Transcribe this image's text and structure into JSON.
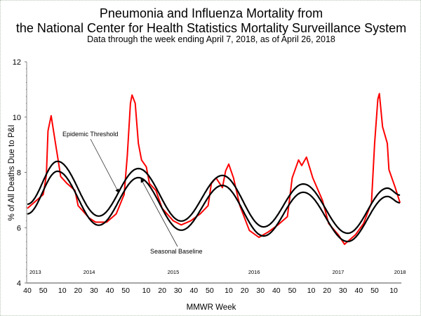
{
  "chart_data": {
    "type": "line",
    "title": "Pneumonia and Influenza Mortality from",
    "title_line2": "the National Center for Health Statistics Mortality Surveillance System",
    "subtitle": "Data through the week ending April 7, 2018, as of April 26, 2018",
    "xlabel": "MMWR Week",
    "ylabel": "% of All Deaths Due to P&I",
    "ylim": [
      4,
      12
    ],
    "yticks": [
      "4",
      "6",
      "8",
      "10",
      "12"
    ],
    "xrange": [
      "2013-40",
      "2018-14"
    ],
    "xticks": [
      {
        "at": "2013-40",
        "label": "40"
      },
      {
        "at": "2013-50",
        "label": "50"
      },
      {
        "at": "2014-10",
        "label": "10"
      },
      {
        "at": "2014-20",
        "label": "20"
      },
      {
        "at": "2014-30",
        "label": "30"
      },
      {
        "at": "2014-40",
        "label": "40"
      },
      {
        "at": "2014-50",
        "label": "50"
      },
      {
        "at": "2015-10",
        "label": "10"
      },
      {
        "at": "2015-20",
        "label": "20"
      },
      {
        "at": "2015-30",
        "label": "30"
      },
      {
        "at": "2015-40",
        "label": "40"
      },
      {
        "at": "2015-50",
        "label": "50"
      },
      {
        "at": "2016-10",
        "label": "10"
      },
      {
        "at": "2016-20",
        "label": "20"
      },
      {
        "at": "2016-30",
        "label": "30"
      },
      {
        "at": "2016-40",
        "label": "40"
      },
      {
        "at": "2016-50",
        "label": "50"
      },
      {
        "at": "2017-10",
        "label": "10"
      },
      {
        "at": "2017-20",
        "label": "20"
      },
      {
        "at": "2017-30",
        "label": "30"
      },
      {
        "at": "2017-40",
        "label": "40"
      },
      {
        "at": "2017-50",
        "label": "50"
      },
      {
        "at": "2018-10",
        "label": "10"
      }
    ],
    "year_labels": [
      {
        "at": "2013-45",
        "label": "2013"
      },
      {
        "at": "2014-27",
        "label": "2014"
      },
      {
        "at": "2015-27",
        "label": "2015"
      },
      {
        "at": "2016-26",
        "label": "2016"
      },
      {
        "at": "2017-27",
        "label": "2017"
      },
      {
        "at": "2018-14",
        "label": "2018"
      }
    ],
    "grid": false,
    "series": [
      {
        "name": "% of deaths due to P&I",
        "color": "#ff0000",
        "points": [
          [
            "2013-40",
            6.7
          ],
          [
            "2013-46",
            7.0
          ],
          [
            "2013-50",
            7.2
          ],
          [
            "2013-52",
            7.9
          ],
          [
            "2014-01",
            9.5
          ],
          [
            "2014-03",
            10.05
          ],
          [
            "2014-06",
            8.95
          ],
          [
            "2014-07",
            8.6
          ],
          [
            "2014-09",
            7.85
          ],
          [
            "2014-13",
            7.6
          ],
          [
            "2014-18",
            7.35
          ],
          [
            "2014-20",
            6.8
          ],
          [
            "2014-27",
            6.35
          ],
          [
            "2014-31",
            6.2
          ],
          [
            "2014-38",
            6.2
          ],
          [
            "2014-44",
            6.5
          ],
          [
            "2014-49",
            7.2
          ],
          [
            "2014-51",
            8.6
          ],
          [
            "2014-53",
            10.5
          ],
          [
            "2015-01",
            10.8
          ],
          [
            "2015-03",
            10.5
          ],
          [
            "2015-05",
            9.05
          ],
          [
            "2015-07",
            8.45
          ],
          [
            "2015-10",
            8.2
          ],
          [
            "2015-12",
            7.6
          ],
          [
            "2015-16",
            7.35
          ],
          [
            "2015-20",
            6.7
          ],
          [
            "2015-27",
            6.25
          ],
          [
            "2015-32",
            6.1
          ],
          [
            "2015-38",
            6.25
          ],
          [
            "2015-44",
            6.5
          ],
          [
            "2015-49",
            6.8
          ],
          [
            "2015-51",
            7.6
          ],
          [
            "2016-02",
            7.8
          ],
          [
            "2016-06",
            7.45
          ],
          [
            "2016-08",
            8.05
          ],
          [
            "2016-10",
            8.3
          ],
          [
            "2016-13",
            7.8
          ],
          [
            "2016-17",
            6.8
          ],
          [
            "2016-23",
            5.9
          ],
          [
            "2016-29",
            5.65
          ],
          [
            "2016-35",
            5.85
          ],
          [
            "2016-41",
            6.1
          ],
          [
            "2016-47",
            6.4
          ],
          [
            "2016-50",
            7.8
          ],
          [
            "2017-02",
            8.45
          ],
          [
            "2017-04",
            8.25
          ],
          [
            "2017-07",
            8.55
          ],
          [
            "2017-11",
            7.8
          ],
          [
            "2017-17",
            7.0
          ],
          [
            "2017-21",
            6.15
          ],
          [
            "2017-27",
            5.75
          ],
          [
            "2017-31",
            5.4
          ],
          [
            "2017-38",
            5.75
          ],
          [
            "2017-43",
            6.15
          ],
          [
            "2017-48",
            6.9
          ],
          [
            "2017-50",
            9.05
          ],
          [
            "2017-52",
            10.65
          ],
          [
            "2018-01",
            10.85
          ],
          [
            "2018-03",
            9.65
          ],
          [
            "2018-06",
            9.05
          ],
          [
            "2018-07",
            8.1
          ],
          [
            "2018-11",
            7.45
          ],
          [
            "2018-14",
            6.9
          ]
        ]
      },
      {
        "name": "Epidemic Threshold",
        "color": "#000000",
        "points": [
          [
            "2013-40",
            6.85
          ],
          [
            "2014-07",
            8.4
          ],
          [
            "2014-33",
            6.42
          ],
          [
            "2015-05",
            8.14
          ],
          [
            "2015-32",
            6.24
          ],
          [
            "2016-06",
            7.89
          ],
          [
            "2016-32",
            6.03
          ],
          [
            "2017-05",
            7.58
          ],
          [
            "2017-33",
            5.8
          ],
          [
            "2018-06",
            7.43
          ],
          [
            "2018-14",
            7.18
          ]
        ]
      },
      {
        "name": "Seasonal Baseline",
        "color": "#000000",
        "points": [
          [
            "2013-40",
            6.5
          ],
          [
            "2014-07",
            8.04
          ],
          [
            "2014-33",
            6.09
          ],
          [
            "2015-05",
            7.81
          ],
          [
            "2015-32",
            5.91
          ],
          [
            "2016-06",
            7.53
          ],
          [
            "2016-32",
            5.7
          ],
          [
            "2017-05",
            7.28
          ],
          [
            "2017-33",
            5.5
          ],
          [
            "2018-06",
            7.13
          ],
          [
            "2018-14",
            6.9
          ]
        ]
      }
    ],
    "annotations": [
      {
        "text": "Epidemic Threshold",
        "points_to": "Epidemic Threshold"
      },
      {
        "text": "Seasonal Baseline",
        "points_to": "Seasonal Baseline"
      }
    ]
  }
}
